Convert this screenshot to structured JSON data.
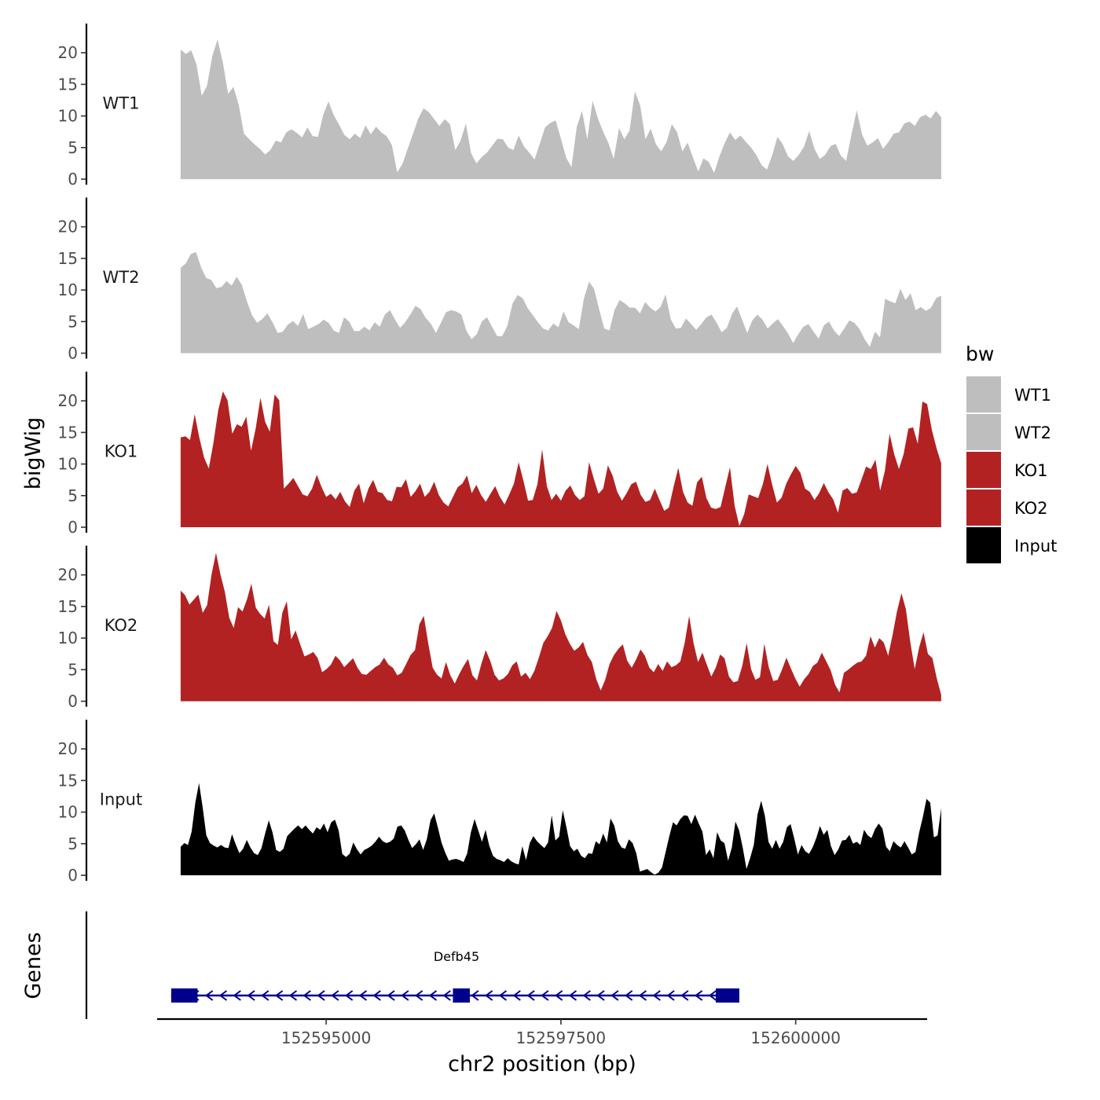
{
  "chart_data": {
    "type": "area",
    "title": "",
    "xlabel": "chr2 position (bp)",
    "ylabel": "bigWig",
    "genes_label": "Genes",
    "legend_title": "bw",
    "xlim": [
      152593200,
      152601400
    ],
    "ylim": [
      0,
      24
    ],
    "x_ticks": [
      152595000,
      152597500,
      152600000
    ],
    "x_tick_labels": [
      "152595000",
      "152597500",
      "152600000"
    ],
    "y_ticks": [
      0,
      5,
      10,
      15,
      20
    ],
    "y_tick_labels": [
      "0",
      "5",
      "10",
      "15",
      "20"
    ],
    "x_start": 152593450,
    "x_end": 152601550,
    "colors": {
      "WT": "#bebebe",
      "KO": "#b22222",
      "Input": "#000000",
      "gene": "#00008b"
    },
    "series": [
      {
        "name": "WT1",
        "color": "#bebebe",
        "values": [
          20.5,
          19.8,
          20.4,
          18.2,
          13.2,
          14.8,
          19.5,
          22.1,
          18.4,
          13.5,
          14.6,
          11.8,
          7.2,
          6.3,
          5.5,
          4.8,
          3.9,
          4.6,
          6.1,
          5.8,
          7.4,
          7.9,
          7.3,
          6.6,
          8.2,
          6.8,
          6.7,
          10.2,
          12.3,
          10.1,
          8.6,
          7.0,
          6.3,
          7.2,
          6.5,
          8.5,
          7.1,
          8.3,
          7.4,
          6.8,
          5.4,
          1.1,
          2.4,
          4.8,
          7.2,
          9.6,
          11.2,
          10.6,
          9.5,
          8.4,
          9.5,
          8.7,
          4.6,
          6.1,
          8.8,
          4.1,
          2.5,
          3.5,
          4.2,
          5.3,
          6.4,
          6.3,
          5.0,
          4.6,
          6.9,
          5.2,
          4.2,
          3.1,
          5.6,
          8.2,
          8.9,
          9.3,
          6.4,
          3.4,
          1.9,
          8.3,
          10.8,
          6.3,
          12.4,
          9.6,
          7.5,
          5.7,
          3.2,
          8.1,
          6.3,
          7.7,
          13.9,
          11.7,
          6.3,
          8.0,
          5.5,
          4.4,
          5.9,
          8.7,
          7.4,
          4.4,
          5.8,
          3.4,
          1.2,
          3.3,
          2.7,
          1.0,
          3.6,
          5.7,
          7.4,
          6.2,
          6.9,
          5.9,
          5.0,
          3.8,
          2.2,
          1.5,
          3.8,
          6.7,
          5.5,
          3.6,
          2.9,
          3.8,
          5.1,
          7.6,
          4.8,
          3.2,
          3.8,
          5.2,
          5.6,
          3.7,
          2.9,
          7.0,
          10.9,
          7.1,
          5.3,
          5.8,
          6.5,
          4.8,
          5.9,
          7.2,
          7.4,
          8.8,
          9.1,
          8.4,
          9.8,
          10.2,
          9.6,
          10.8,
          9.8
        ]
      },
      {
        "name": "WT2",
        "color": "#bebebe",
        "values": [
          13.5,
          14.2,
          15.7,
          16.0,
          13.6,
          11.9,
          11.6,
          10.3,
          10.5,
          11.4,
          10.7,
          12.1,
          10.8,
          8.2,
          6.0,
          4.8,
          5.4,
          6.3,
          4.9,
          3.2,
          3.4,
          4.5,
          5.1,
          4.3,
          6.2,
          3.8,
          4.2,
          4.6,
          5.3,
          4.8,
          3.6,
          3.2,
          5.7,
          5.0,
          3.5,
          3.5,
          4.2,
          3.6,
          4.9,
          4.2,
          6.1,
          6.8,
          5.3,
          4.0,
          4.9,
          6.1,
          7.5,
          7.0,
          5.6,
          4.7,
          3.2,
          4.8,
          6.5,
          6.8,
          6.6,
          6.1,
          3.5,
          2.2,
          3.0,
          5.0,
          5.7,
          4.2,
          2.7,
          2.7,
          4.3,
          7.8,
          9.2,
          8.7,
          7.1,
          6.0,
          4.9,
          3.9,
          3.6,
          4.7,
          4.1,
          6.6,
          4.9,
          4.4,
          3.8,
          8.6,
          11.3,
          10.2,
          6.9,
          3.9,
          3.6,
          6.8,
          8.4,
          7.9,
          7.2,
          7.2,
          6.3,
          8.1,
          7.2,
          6.6,
          7.3,
          9.3,
          5.4,
          3.9,
          4.0,
          5.5,
          4.6,
          3.7,
          4.6,
          5.7,
          6.1,
          4.8,
          3.3,
          4.0,
          6.2,
          7.4,
          5.3,
          3.2,
          5.2,
          6.1,
          5.3,
          3.9,
          4.7,
          5.4,
          4.3,
          3.1,
          1.6,
          3.0,
          4.2,
          4.6,
          3.4,
          2.3,
          4.4,
          5.0,
          3.6,
          2.7,
          3.9,
          5.2,
          4.8,
          3.8,
          2.2,
          1.0,
          3.4,
          2.5,
          8.6,
          8.2,
          7.9,
          10.2,
          8.4,
          9.5,
          6.8,
          7.3,
          6.7,
          7.2,
          8.7,
          9.1
        ]
      },
      {
        "name": "KO1",
        "color": "#b22222",
        "values": [
          14.2,
          14.4,
          13.8,
          17.9,
          14.1,
          11.0,
          9.3,
          13.4,
          18.5,
          21.5,
          20.1,
          14.8,
          16.3,
          15.9,
          17.5,
          12.1,
          15.7,
          20.5,
          16.7,
          15.1,
          21.0,
          20.1,
          6.1,
          6.9,
          7.8,
          6.5,
          5.2,
          4.9,
          6.1,
          8.3,
          6.4,
          4.8,
          5.3,
          4.4,
          5.6,
          4.1,
          3.2,
          5.8,
          6.9,
          3.8,
          6.1,
          7.5,
          5.6,
          5.4,
          4.3,
          4.1,
          6.4,
          6.3,
          7.6,
          4.8,
          5.7,
          6.9,
          4.8,
          5.6,
          7.2,
          5.1,
          3.9,
          3.3,
          4.8,
          6.3,
          6.9,
          8.2,
          5.4,
          6.7,
          5.1,
          4.0,
          5.3,
          6.5,
          4.8,
          3.6,
          5.2,
          6.9,
          10.3,
          7.4,
          4.2,
          4.3,
          6.8,
          12.3,
          6.5,
          4.3,
          5.3,
          4.2,
          5.8,
          6.6,
          5.1,
          4.3,
          4.9,
          10.3,
          7.7,
          5.3,
          6.1,
          9.8,
          8.2,
          5.6,
          4.2,
          5.4,
          6.8,
          7.2,
          5.1,
          4.0,
          4.3,
          6.1,
          4.3,
          2.6,
          3.1,
          6.4,
          9.4,
          5.6,
          3.9,
          3.4,
          7.1,
          8.0,
          4.6,
          3.1,
          2.9,
          3.2,
          6.3,
          9.5,
          3.4,
          0.2,
          2.0,
          5.2,
          4.9,
          4.6,
          6.8,
          10.0,
          6.7,
          3.9,
          4.7,
          6.9,
          8.4,
          9.7,
          8.6,
          6.1,
          5.6,
          4.3,
          5.4,
          7.0,
          5.5,
          4.4,
          2.3,
          5.8,
          6.2,
          5.3,
          5.5,
          7.5,
          9.6,
          9.2,
          10.7,
          5.8,
          8.9,
          14.8,
          11.5,
          9.2,
          11.6,
          15.6,
          15.8,
          13.2,
          19.9,
          19.5,
          15.4,
          12.5,
          10.1
        ]
      },
      {
        "name": "KO2",
        "color": "#b22222",
        "values": [
          17.5,
          16.8,
          15.3,
          16.1,
          16.9,
          14.0,
          15.2,
          20.1,
          23.5,
          20.1,
          17.3,
          13.2,
          11.6,
          14.9,
          14.2,
          16.1,
          18.6,
          14.8,
          13.8,
          13.1,
          15.3,
          9.5,
          8.9,
          14.0,
          15.8,
          9.8,
          11.2,
          9.1,
          7.1,
          7.4,
          7.8,
          6.8,
          4.6,
          5.1,
          5.8,
          7.2,
          6.5,
          5.4,
          6.1,
          6.8,
          5.3,
          4.3,
          4.2,
          4.8,
          5.4,
          5.8,
          6.9,
          5.8,
          5.3,
          4.1,
          4.5,
          5.9,
          7.3,
          8.1,
          12.2,
          13.5,
          9.1,
          5.3,
          4.2,
          3.6,
          6.2,
          4.1,
          2.8,
          4.3,
          5.6,
          6.7,
          4.1,
          3.3,
          5.9,
          8.1,
          6.4,
          4.2,
          3.3,
          3.6,
          4.3,
          5.7,
          6.3,
          3.9,
          4.5,
          3.5,
          4.8,
          6.9,
          9.2,
          10.3,
          11.6,
          14.3,
          12.8,
          10.6,
          9.1,
          8.0,
          8.5,
          9.4,
          7.3,
          6.2,
          3.5,
          1.7,
          3.4,
          5.9,
          7.3,
          8.3,
          9.0,
          6.4,
          5.3,
          6.6,
          8.2,
          7.2,
          5.3,
          4.6,
          5.9,
          4.8,
          6.3,
          5.4,
          5.7,
          6.3,
          9.3,
          13.5,
          9.2,
          6.2,
          7.7,
          5.8,
          3.9,
          5.3,
          7.4,
          6.8,
          3.9,
          3.0,
          3.2,
          5.6,
          9.2,
          5.1,
          3.4,
          3.8,
          9.1,
          5.4,
          3.2,
          3.4,
          5.0,
          6.9,
          5.2,
          3.6,
          2.3,
          3.5,
          4.3,
          5.6,
          6.1,
          7.7,
          6.3,
          4.9,
          2.6,
          1.4,
          4.5,
          5.0,
          5.6,
          6.1,
          6.3,
          7.2,
          10.3,
          8.5,
          10.0,
          9.3,
          7.2,
          10.5,
          14.2,
          17.1,
          14.6,
          9.4,
          5.1,
          8.5,
          10.9,
          7.5,
          6.8,
          3.6,
          1.0
        ]
      },
      {
        "name": "Input",
        "color": "#000000",
        "values": [
          4.5,
          5.1,
          4.8,
          6.9,
          11.5,
          14.6,
          10.8,
          6.3,
          5.1,
          4.7,
          4.4,
          4.8,
          4.4,
          4.3,
          6.5,
          4.9,
          3.5,
          4.2,
          5.6,
          4.4,
          3.5,
          3.2,
          4.3,
          6.6,
          8.7,
          6.8,
          4.0,
          3.7,
          4.2,
          6.2,
          6.8,
          7.4,
          7.9,
          7.3,
          7.9,
          7.2,
          6.6,
          7.6,
          7.2,
          8.2,
          6.8,
          8.4,
          8.8,
          7.1,
          3.4,
          2.9,
          3.4,
          5.2,
          4.1,
          3.3,
          4.0,
          4.3,
          4.7,
          5.3,
          6.1,
          5.4,
          5.1,
          5.3,
          5.8,
          7.7,
          7.9,
          7.1,
          5.6,
          4.3,
          4.9,
          5.7,
          4.0,
          5.7,
          8.7,
          9.8,
          7.6,
          5.2,
          3.6,
          2.3,
          2.5,
          2.6,
          2.4,
          2.1,
          3.5,
          6.8,
          8.9,
          7.1,
          5.3,
          7.2,
          4.7,
          3.1,
          2.6,
          2.4,
          2.1,
          2.7,
          2.2,
          1.9,
          1.7,
          4.6,
          2.4,
          5.1,
          6.2,
          5.4,
          4.8,
          4.3,
          5.2,
          9.5,
          5.5,
          6.1,
          10.3,
          7.6,
          4.6,
          3.8,
          4.2,
          3.1,
          2.7,
          3.5,
          3.4,
          5.4,
          4.9,
          6.6,
          5.2,
          9.0,
          7.9,
          5.4,
          4.4,
          4.2,
          5.7,
          5.1,
          3.5,
          0.6,
          0.8,
          1.0,
          0.5,
          0.1,
          0.4,
          1.2,
          3.7,
          6.2,
          8.4,
          7.9,
          8.9,
          9.5,
          9.4,
          8.1,
          9.6,
          8.2,
          6.9,
          3.2,
          4.1,
          2.7,
          6.8,
          5.5,
          5.1,
          2.3,
          4.4,
          8.5,
          7.1,
          4.3,
          1.0,
          2.7,
          4.8,
          9.6,
          11.8,
          9.4,
          5.3,
          4.2,
          5.6,
          4.2,
          5.3,
          7.6,
          8.1,
          5.8,
          3.3,
          4.8,
          3.8,
          3.4,
          4.4,
          5.9,
          7.8,
          6.4,
          7.2,
          4.6,
          3.2,
          4.1,
          5.5,
          5.6,
          6.4,
          5.0,
          5.3,
          4.8,
          7.2,
          6.3,
          5.9,
          7.3,
          8.2,
          7.4,
          4.5,
          3.8,
          5.4,
          4.8,
          4.4,
          5.4,
          4.4,
          3.3,
          3.7,
          6.8,
          9.2,
          12.1,
          11.5,
          6.0,
          6.3,
          10.6
        ]
      }
    ],
    "legend": [
      "WT1",
      "WT2",
      "KO1",
      "KO2",
      "Input"
    ],
    "gene": {
      "name": "Defb45",
      "strand": "-",
      "start": 152593450,
      "end": 152599400,
      "exons": [
        [
          152593450,
          152593630
        ],
        [
          152596450,
          152596530
        ],
        [
          152599250,
          152599400
        ]
      ]
    }
  }
}
